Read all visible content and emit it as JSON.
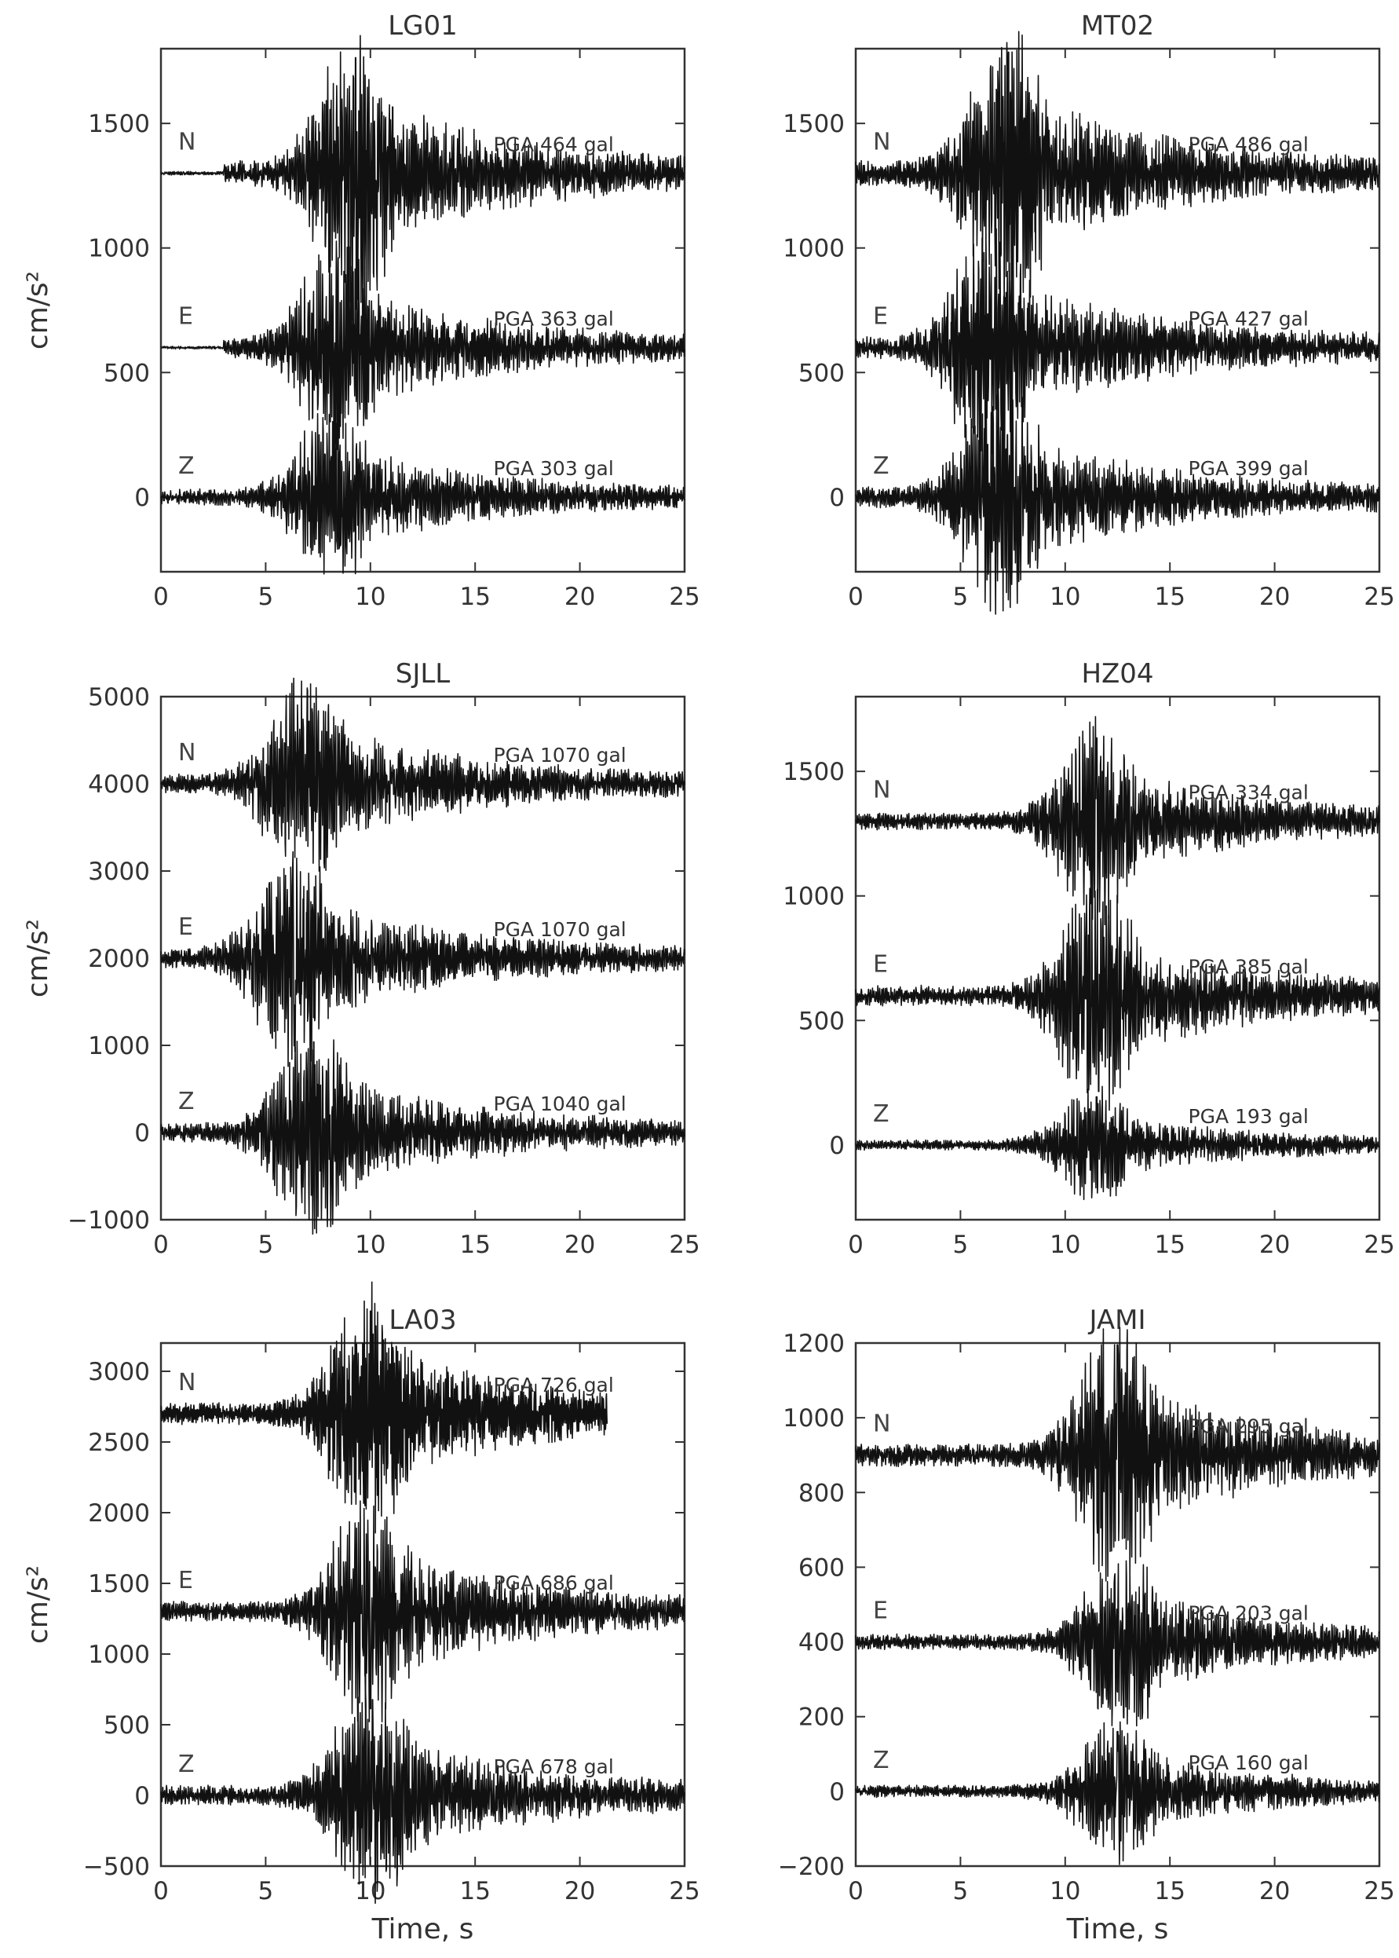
{
  "chart_data": [
    {
      "type": "line",
      "title": "LG01",
      "ylabel": "cm/s²",
      "xlabel": "",
      "xlim": [
        0,
        25
      ],
      "ylim": [
        -300,
        1800
      ],
      "xticks": [
        0,
        5,
        10,
        15,
        20,
        25
      ],
      "yticks": [
        0,
        500,
        1000,
        1500
      ],
      "series": [
        {
          "name": "N",
          "offset": 1300,
          "pga_label": "PGA  464  gal",
          "pga": 464,
          "onset": 3.0,
          "peak_time": 9.3,
          "end": 25
        },
        {
          "name": "E",
          "offset": 600,
          "pga_label": "PGA  363  gal",
          "pga": 363,
          "onset": 3.0,
          "peak_time": 8.5,
          "end": 25
        },
        {
          "name": "Z",
          "offset": 0,
          "pga_label": "PGA  303  gal",
          "pga": 303,
          "onset": 0.0,
          "peak_time": 8.2,
          "end": 25
        }
      ]
    },
    {
      "type": "line",
      "title": "MT02",
      "ylabel": "",
      "xlabel": "",
      "xlim": [
        0,
        25
      ],
      "ylim": [
        -300,
        1800
      ],
      "xticks": [
        0,
        5,
        10,
        15,
        20,
        25
      ],
      "yticks": [
        0,
        500,
        1000,
        1500
      ],
      "series": [
        {
          "name": "N",
          "offset": 1300,
          "pga_label": "PGA  486  gal",
          "pga": 486,
          "onset": 0.0,
          "peak_time": 7.3,
          "end": 25
        },
        {
          "name": "E",
          "offset": 600,
          "pga_label": "PGA  427  gal",
          "pga": 427,
          "onset": 0.0,
          "peak_time": 6.5,
          "end": 25
        },
        {
          "name": "Z",
          "offset": 0,
          "pga_label": "PGA  399  gal",
          "pga": 399,
          "onset": 0.0,
          "peak_time": 7.0,
          "end": 25
        }
      ]
    },
    {
      "type": "line",
      "title": "SJLL",
      "ylabel": "cm/s²",
      "xlabel": "",
      "xlim": [
        0,
        25
      ],
      "ylim": [
        -1000,
        5000
      ],
      "xticks": [
        0,
        5,
        10,
        15,
        20,
        25
      ],
      "yticks": [
        -1000,
        0,
        1000,
        2000,
        3000,
        4000,
        5000
      ],
      "series": [
        {
          "name": "N",
          "offset": 4000,
          "pga_label": "PGA  1070  gal",
          "pga": 1070,
          "onset": 0.0,
          "peak_time": 7.0,
          "end": 25
        },
        {
          "name": "E",
          "offset": 2000,
          "pga_label": "PGA  1070  gal",
          "pga": 1070,
          "onset": 0.0,
          "peak_time": 6.4,
          "end": 25
        },
        {
          "name": "Z",
          "offset": 0,
          "pga_label": "PGA  1040  gal",
          "pga": 1040,
          "onset": 0.0,
          "peak_time": 7.3,
          "end": 25
        }
      ]
    },
    {
      "type": "line",
      "title": "HZ04",
      "ylabel": "",
      "xlabel": "",
      "xlim": [
        0,
        25
      ],
      "ylim": [
        -300,
        1800
      ],
      "xticks": [
        0,
        5,
        10,
        15,
        20,
        25
      ],
      "yticks": [
        0,
        500,
        1000,
        1500
      ],
      "series": [
        {
          "name": "N",
          "offset": 1300,
          "pga_label": "PGA  334  gal",
          "pga": 334,
          "onset": 0.0,
          "peak_time": 11.5,
          "end": 25
        },
        {
          "name": "E",
          "offset": 600,
          "pga_label": "PGA  385  gal",
          "pga": 385,
          "onset": 0.0,
          "peak_time": 11.6,
          "end": 25
        },
        {
          "name": "Z",
          "offset": 0,
          "pga_label": "PGA  193  gal",
          "pga": 193,
          "onset": 0.0,
          "peak_time": 11.5,
          "end": 25
        }
      ]
    },
    {
      "type": "line",
      "title": "LA03",
      "ylabel": "cm/s²",
      "xlabel": "Time,  s",
      "xlim": [
        0,
        25
      ],
      "ylim": [
        -500,
        3200
      ],
      "xticks": [
        0,
        5,
        10,
        15,
        20,
        25
      ],
      "yticks": [
        -500,
        0,
        500,
        1000,
        1500,
        2000,
        2500,
        3000
      ],
      "series": [
        {
          "name": "N",
          "offset": 2700,
          "pga_label": "PGA  726  gal",
          "pga": 726,
          "onset": 0.0,
          "peak_time": 10.0,
          "end": 21.3
        },
        {
          "name": "E",
          "offset": 1300,
          "pga_label": "PGA  686  gal",
          "pga": 686,
          "onset": 0.0,
          "peak_time": 10.0,
          "end": 25
        },
        {
          "name": "Z",
          "offset": 0,
          "pga_label": "PGA  678  gal",
          "pga": 678,
          "onset": 0.0,
          "peak_time": 10.1,
          "end": 25
        }
      ]
    },
    {
      "type": "line",
      "title": "JAMI",
      "ylabel": "",
      "xlabel": "Time,  s",
      "xlim": [
        0,
        25
      ],
      "ylim": [
        -200,
        1200
      ],
      "xticks": [
        0,
        5,
        10,
        15,
        20,
        25
      ],
      "yticks": [
        -200,
        0,
        200,
        400,
        600,
        800,
        1000,
        1200
      ],
      "series": [
        {
          "name": "N",
          "offset": 900,
          "pga_label": "PGA  295  gal",
          "pga": 295,
          "onset": 0.0,
          "peak_time": 12.5,
          "end": 25
        },
        {
          "name": "E",
          "offset": 400,
          "pga_label": "PGA  203  gal",
          "pga": 203,
          "onset": 0.0,
          "peak_time": 12.8,
          "end": 25
        },
        {
          "name": "Z",
          "offset": 0,
          "pga_label": "PGA  160  gal",
          "pga": 160,
          "onset": 0.0,
          "peak_time": 12.5,
          "end": 25
        }
      ]
    }
  ]
}
